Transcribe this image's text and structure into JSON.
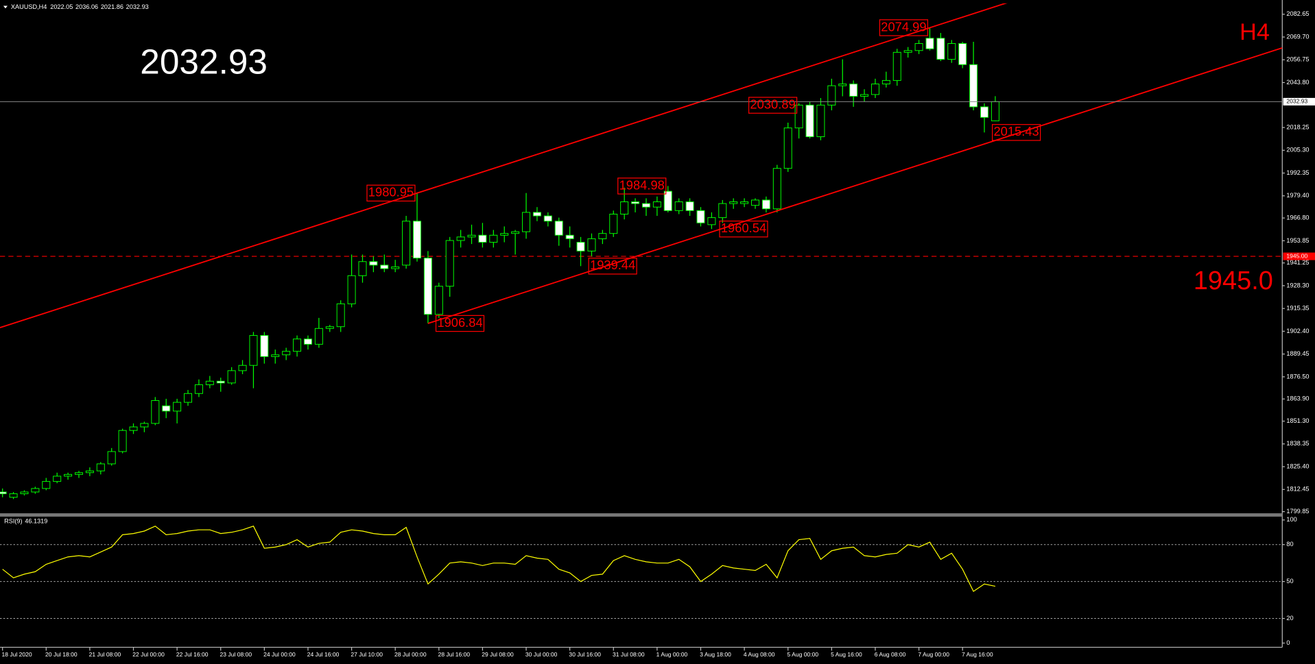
{
  "chart_data": [
    {
      "type": "candlestick",
      "title": "XAUUSD,H4",
      "timeframe": "H4",
      "categories": [
        "18 Jul 2020",
        null,
        null,
        null,
        "20 Jul 18:00",
        null,
        null,
        null,
        "21 Jul 08:00",
        null,
        null,
        null,
        "22 Jul 00:00",
        null,
        null,
        null,
        "22 Jul 16:00",
        null,
        null,
        null,
        "23 Jul 08:00",
        null,
        null,
        null,
        "24 Jul 00:00",
        null,
        null,
        null,
        "24 Jul 16:00",
        null,
        null,
        null,
        "27 Jul 10:00",
        null,
        null,
        null,
        "28 Jul 00:00",
        null,
        null,
        null,
        "28 Jul 16:00",
        null,
        null,
        null,
        "29 Jul 08:00",
        null,
        null,
        null,
        "30 Jul 00:00",
        null,
        null,
        null,
        "30 Jul 16:00",
        null,
        null,
        null,
        "31 Jul 08:00",
        null,
        null,
        null,
        "1 Aug 00:00",
        null,
        null,
        null,
        "3 Aug 18:00",
        null,
        null,
        null,
        "4 Aug 08:00",
        null,
        null,
        null,
        "5 Aug 00:00",
        null,
        null,
        null,
        "5 Aug 16:00",
        null,
        null,
        null,
        "6 Aug 08:00",
        null,
        null,
        null,
        "7 Aug 00:00",
        null,
        null,
        null,
        "7 Aug 16:00",
        null,
        null,
        null
      ],
      "open": [
        1811,
        1808,
        1810,
        1811,
        1813,
        1817,
        1820,
        1821,
        1822,
        1823,
        1827,
        1834,
        1846,
        1848,
        1850,
        1860,
        1857,
        1862,
        1867,
        1872,
        1874,
        1873,
        1880,
        1883,
        1900,
        1888,
        1889,
        1891,
        1898,
        1895,
        1904,
        1905,
        1918,
        1934,
        1942,
        1940,
        1938,
        1940,
        1965,
        1944,
        1912,
        1928,
        1954,
        1956,
        1957,
        1953,
        1957,
        1958,
        1959,
        1970,
        1968,
        1965,
        1957,
        1953,
        1948,
        1955,
        1958,
        1969,
        1976,
        1975,
        1973,
        1982,
        1971,
        1976,
        1971,
        1963,
        1967,
        1975,
        1975,
        1974,
        1977,
        1972,
        1995,
        2018,
        2031,
        2013,
        2031,
        2042,
        2043,
        2036,
        2037,
        2043,
        2045,
        2061,
        2062,
        2069,
        2069,
        2057,
        2066,
        2054,
        2030,
        2022.05
      ],
      "high": [
        1813,
        1811,
        1812,
        1814,
        1819,
        1822,
        1822,
        1823,
        1825,
        1828,
        1836,
        1847,
        1850,
        1851,
        1865,
        1864,
        1864,
        1869,
        1875,
        1877,
        1876,
        1882,
        1886,
        1902,
        1902,
        1892,
        1893,
        1900,
        1900,
        1910,
        1906,
        1920,
        1946,
        1946,
        1945,
        1946,
        1943,
        1968,
        1980.95,
        1948,
        1930,
        1956,
        1960,
        1963,
        1964,
        1960,
        1962,
        1960,
        1981,
        1973,
        1970,
        1967,
        1962,
        1956,
        1958,
        1960,
        1971,
        1984,
        1978,
        1978,
        1979,
        1984.98,
        1978,
        1978,
        1973,
        1970,
        1977,
        1978,
        1978,
        1978,
        1979,
        1997,
        2021,
        2032,
        2033,
        2035,
        2046,
        2057,
        2045,
        2040,
        2046,
        2050,
        2063,
        2064,
        2068,
        2074.99,
        2072,
        2068,
        2067,
        2067,
        2032,
        2036.06
      ],
      "low": [
        1808,
        1807,
        1809,
        1810,
        1812,
        1816,
        1818,
        1819,
        1820,
        1821,
        1826,
        1833,
        1844,
        1845,
        1849,
        1853,
        1850,
        1860,
        1865,
        1870,
        1868,
        1872,
        1878,
        1870,
        1884,
        1884,
        1886,
        1888,
        1892,
        1893,
        1902,
        1902,
        1916,
        1930,
        1936,
        1936,
        1936,
        1938,
        1942,
        1906.84,
        1910,
        1922,
        1950,
        1952,
        1950,
        1950,
        1953,
        1946,
        1955,
        1965,
        1962,
        1951,
        1950,
        1939.44,
        1945,
        1952,
        1956,
        1966,
        1970,
        1968,
        1968,
        1970,
        1969,
        1968,
        1962,
        1960.54,
        1964,
        1972,
        1973,
        1972,
        1970,
        1970,
        1993,
        2012,
        2012,
        2011,
        2028,
        2036,
        2030,
        2033,
        2035,
        2041,
        2042,
        2058,
        2060,
        2062,
        2056,
        2055,
        2052,
        2028,
        2015.43,
        2021.86
      ],
      "close": [
        1810,
        1810,
        1811,
        1813,
        1817,
        1820,
        1821,
        1822,
        1823,
        1827,
        1834,
        1846,
        1848,
        1850,
        1863,
        1857,
        1862,
        1867,
        1872,
        1874,
        1873,
        1880,
        1883,
        1900,
        1888,
        1889,
        1891,
        1898,
        1895,
        1904,
        1905,
        1918,
        1934,
        1942,
        1940,
        1938,
        1939,
        1965,
        1944,
        1912,
        1928,
        1954,
        1956,
        1957,
        1953,
        1957,
        1958,
        1959,
        1970,
        1968,
        1965,
        1957,
        1955,
        1948,
        1955,
        1958,
        1969,
        1976,
        1975,
        1973,
        1976,
        1971,
        1976,
        1971,
        1964,
        1967,
        1975,
        1976,
        1976,
        1977,
        1972,
        1995,
        2018,
        2031,
        2013,
        2031,
        2042,
        2043,
        2036,
        2037,
        2043,
        2045,
        2061,
        2062,
        2066,
        2063,
        2057,
        2066,
        2054,
        2030,
        2024,
        2032.93
      ],
      "ylim": [
        1798.9,
        2088.84
      ],
      "yticks": [
        2082.65,
        {
          "value": 2069.7,
          "label": "2069.70"
        },
        2056.75,
        {
          "value": 2043.8,
          "label": "2043.80"
        },
        2018.25,
        {
          "value": 2005.3,
          "label": "2005.30"
        },
        1992.35,
        {
          "value": 1979.4,
          "label": "1979.40"
        },
        {
          "value": 1966.8,
          "label": "1966.80"
        },
        1953.85,
        1941.25,
        {
          "value": 1928.3,
          "label": "1928.30"
        },
        1915.35,
        {
          "value": 1902.4,
          "label": "1902.40"
        },
        1889.45,
        {
          "value": 1876.5,
          "label": "1876.50"
        },
        {
          "value": 1863.9,
          "label": "1863.90"
        },
        {
          "value": 1851.3,
          "label": "1851.30"
        },
        1838.35,
        {
          "value": 1825.4,
          "label": "1825.40"
        },
        1812.45,
        1799.85
      ],
      "wick_color": "#00ff00",
      "up_color": "#000000",
      "down_color": "#ffffff",
      "annotations": [
        {
          "index": 38,
          "value": 1980.95
        },
        {
          "index": 39,
          "value": 1906.84
        },
        {
          "index": 61,
          "value": 1984.98
        },
        {
          "index": 65,
          "value": 1960.54
        },
        {
          "index": 53,
          "value": 1939.44
        },
        {
          "index": 73,
          "value": 2030.89
        },
        {
          "index": 85,
          "value": 2074.99
        },
        {
          "index": 90,
          "value": 2015.43
        }
      ],
      "annotation_color": "#ff0000",
      "channel": {
        "points": [
          {
            "index": 38,
            "value": 1980.95
          },
          {
            "index": 85,
            "value": 2074.99
          },
          {
            "index": 39,
            "value": 1906.84
          }
        ],
        "color": "#ff0000"
      },
      "hline": {
        "value": 1945,
        "label": "1945.0",
        "axis_label": "1945.00",
        "color": "#ff0000"
      }
    },
    {
      "type": "line",
      "name": "RSI(9)",
      "color": "#ffff00",
      "values": [
        60,
        53,
        56,
        58,
        64,
        67,
        70,
        71,
        70,
        74,
        78,
        88,
        89,
        91,
        95,
        88,
        89,
        91,
        92,
        92,
        89,
        90,
        92,
        95,
        77,
        78,
        80,
        84,
        78,
        81,
        82,
        90,
        92,
        91,
        89,
        88,
        88,
        94,
        70,
        48,
        56,
        65,
        66,
        65,
        63,
        65,
        65,
        64,
        71,
        69,
        68,
        60,
        57,
        50,
        55,
        56,
        67,
        71,
        68,
        66,
        65,
        65,
        68,
        62,
        50,
        56,
        63,
        61,
        60,
        59,
        64,
        53,
        75,
        84,
        85,
        68,
        75,
        77,
        78,
        71,
        70,
        72,
        73,
        80,
        78,
        82,
        68,
        73,
        60,
        42,
        48,
        46.1319
      ],
      "ylim": [
        0,
        100
      ],
      "yticks": [
        100,
        80,
        50,
        20,
        0
      ],
      "levels": [
        80,
        50,
        20
      ]
    }
  ]
}
